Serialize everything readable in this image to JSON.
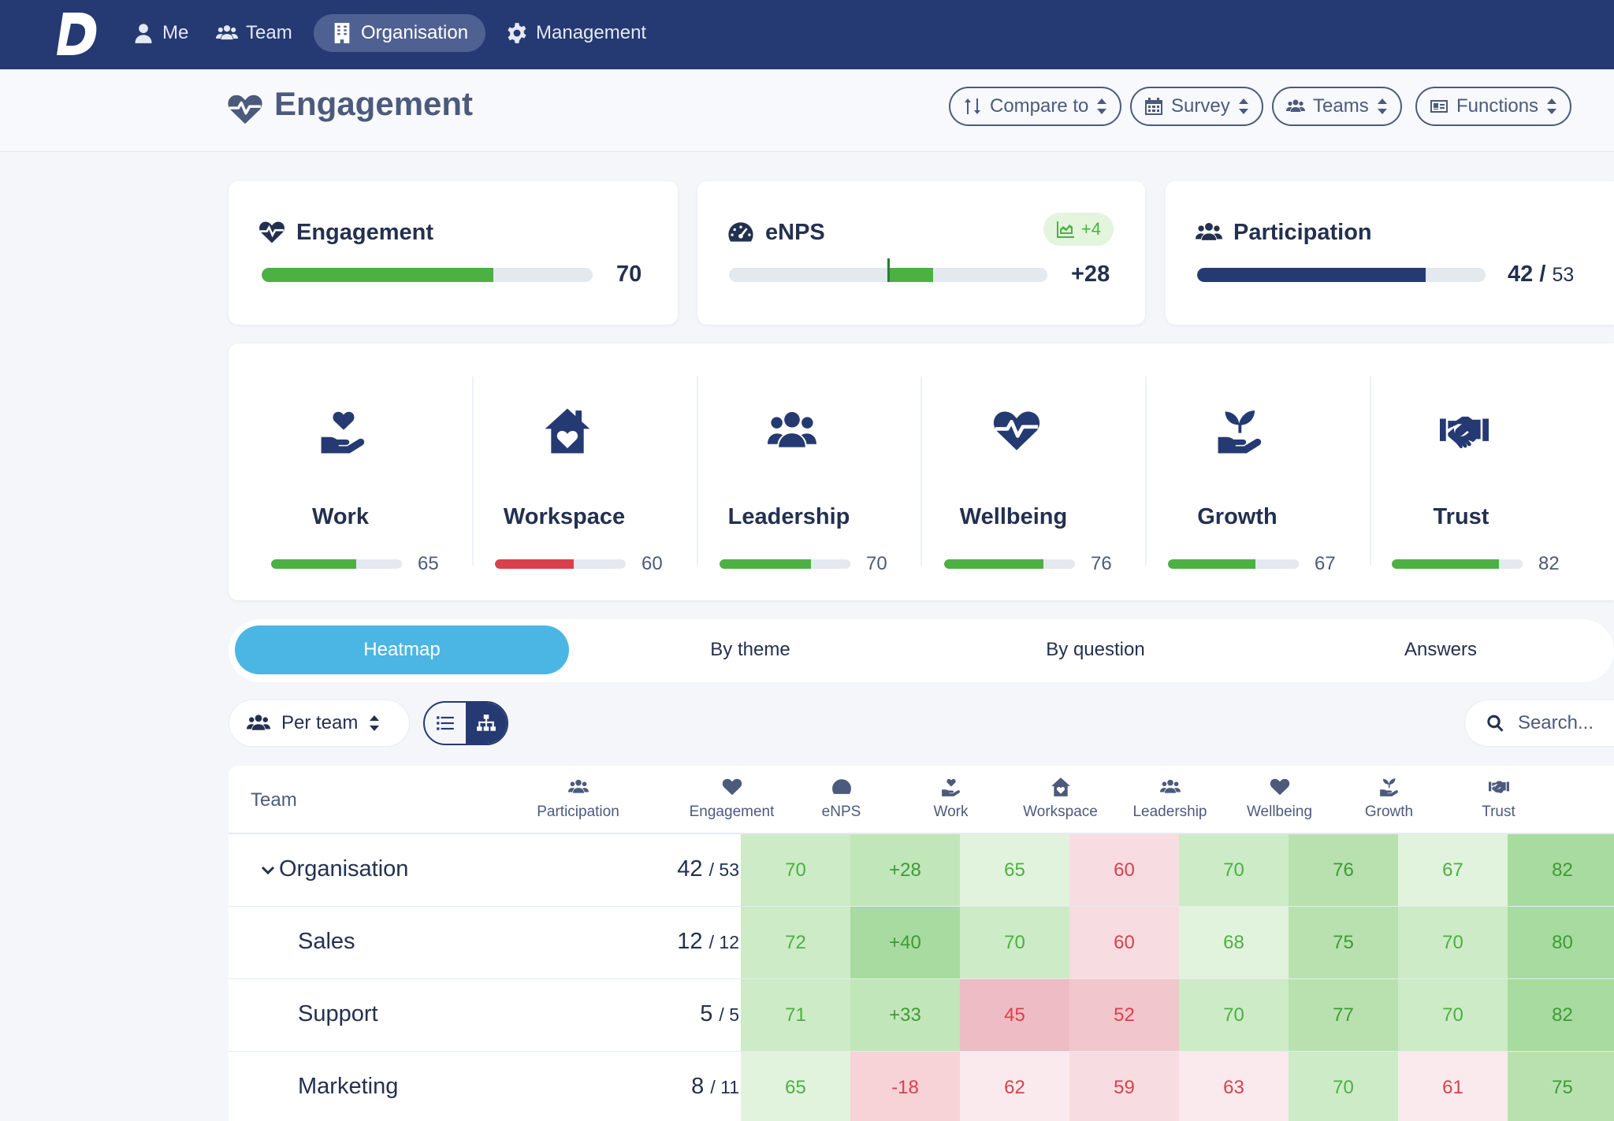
{
  "nav": {
    "items": [
      {
        "label": "Me",
        "icon": "user-icon"
      },
      {
        "label": "Team",
        "icon": "users-icon"
      },
      {
        "label": "Organisation",
        "icon": "building-icon"
      },
      {
        "label": "Management",
        "icon": "gear-icon"
      }
    ],
    "active": "Organisation"
  },
  "header": {
    "title": "Engagement",
    "title_icon": "heartbeat-icon",
    "filters": [
      {
        "label": "Compare to",
        "icon": "sort-arrows-icon"
      },
      {
        "label": "Survey",
        "icon": "calendar-icon"
      },
      {
        "label": "Teams",
        "icon": "users-icon"
      },
      {
        "label": "Functions",
        "icon": "id-card-icon"
      }
    ]
  },
  "summary": {
    "engagement": {
      "title": "Engagement",
      "value": "70",
      "score": 70
    },
    "enps": {
      "title": "eNPS",
      "value": "+28",
      "score": 28,
      "badge": "+4"
    },
    "participation": {
      "title": "Participation",
      "value_main": "42 /",
      "value_total": "53",
      "responded": 42,
      "total": 53
    }
  },
  "themes": [
    {
      "name": "Work",
      "value": "65",
      "score": 65,
      "icon": "hand-heart-icon"
    },
    {
      "name": "Workspace",
      "value": "60",
      "score": 60,
      "icon": "house-heart-icon"
    },
    {
      "name": "Leadership",
      "value": "70",
      "score": 70,
      "icon": "users-icon"
    },
    {
      "name": "Wellbeing",
      "value": "76",
      "score": 76,
      "icon": "heartbeat-icon"
    },
    {
      "name": "Growth",
      "value": "67",
      "score": 67,
      "icon": "seedling-icon"
    },
    {
      "name": "Trust",
      "value": "82",
      "score": 82,
      "icon": "handshake-icon"
    }
  ],
  "tabs": [
    {
      "label": "Heatmap"
    },
    {
      "label": "By theme"
    },
    {
      "label": "By question"
    },
    {
      "label": "Answers"
    }
  ],
  "toolbar": {
    "per_team_label": "Per team",
    "search_placeholder": "Search..."
  },
  "table": {
    "team_header": "Team",
    "columns": [
      "Participation",
      "Engagement",
      "eNPS",
      "Work",
      "Workspace",
      "Leadership",
      "Wellbeing",
      "Growth",
      "Trust"
    ],
    "rows": [
      {
        "team": "Organisation",
        "part_main": "42",
        "part_total": "/ 53",
        "cells": [
          "70",
          "+28",
          "65",
          "60",
          "70",
          "76",
          "67",
          "82"
        ]
      },
      {
        "team": "Sales",
        "part_main": "12",
        "part_total": "/ 12",
        "cells": [
          "72",
          "+40",
          "70",
          "60",
          "68",
          "75",
          "70",
          "80"
        ]
      },
      {
        "team": "Support",
        "part_main": "5",
        "part_total": "/ 5",
        "cells": [
          "71",
          "+33",
          "45",
          "52",
          "70",
          "77",
          "70",
          "82"
        ]
      },
      {
        "team": "Marketing",
        "part_main": "8",
        "part_total": "/ 11",
        "cells": [
          "65",
          "-18",
          "62",
          "59",
          "63",
          "70",
          "61",
          "75"
        ]
      }
    ]
  },
  "colors": {
    "nav_bg": "#253a72",
    "green": "#4cb043",
    "red": "#d9404c",
    "navy": "#253a72",
    "tab_active": "#4bb6e4"
  }
}
